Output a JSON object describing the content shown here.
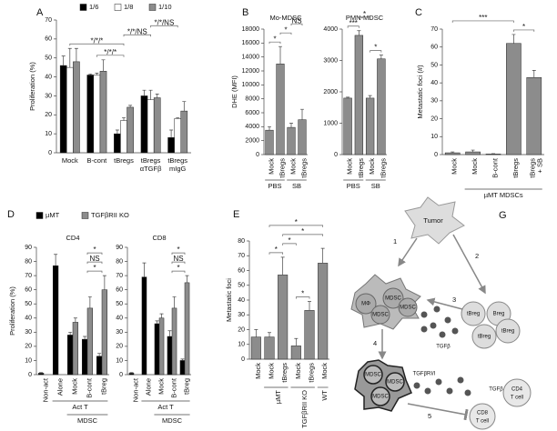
{
  "chart_data": [
    {
      "type": "bar",
      "label": "A",
      "ylabel": "Proliferation (%)",
      "categories": [
        [
          "Mock"
        ],
        [
          "B-cont"
        ],
        [
          "tBregs"
        ],
        [
          "tBregs",
          "αTGFβ"
        ],
        [
          "tBregs",
          "mIgG"
        ]
      ],
      "series": [
        {
          "name": "1/6",
          "color": "#000000",
          "values": [
            46,
            41,
            10,
            30,
            8
          ],
          "errors": [
            5,
            0.5,
            2,
            3,
            4
          ]
        },
        {
          "name": "1/8",
          "color": "#ffffff",
          "values": [
            45,
            41,
            17,
            28,
            18
          ],
          "errors": [
            10,
            1,
            1.5,
            5,
            0.5
          ]
        },
        {
          "name": "1/10",
          "color": "#8c8c8c",
          "values": [
            48,
            43,
            24,
            29,
            22
          ],
          "errors": [
            7,
            6,
            1,
            2,
            5
          ]
        }
      ],
      "ylim": [
        0,
        70
      ],
      "yticks": [
        0,
        10,
        20,
        30,
        40,
        50,
        60,
        70
      ],
      "annotations": [
        {
          "text": "*/*/*",
          "from": 1,
          "to": 2
        },
        {
          "text": "*/*/*",
          "from": 0,
          "to": 2
        },
        {
          "text": "*/*/NS",
          "from": 2,
          "to": 3
        },
        {
          "text": "*/*/NS",
          "from": 3,
          "to": 4
        }
      ]
    },
    {
      "type": "bar",
      "label": "B",
      "title": "Mo-MDSC",
      "ylabel": "DHE (MFI)",
      "categories": [
        [
          "Mock"
        ],
        [
          "tBregs"
        ],
        [
          "Mock"
        ],
        [
          "tBregs"
        ]
      ],
      "series": [
        {
          "color": "#8c8c8c",
          "values": [
            3500,
            13000,
            3900,
            5000
          ],
          "errors": [
            500,
            2500,
            600,
            1500
          ]
        }
      ],
      "ylim": [
        0,
        18000
      ],
      "yticks": [
        0,
        2000,
        4000,
        6000,
        8000,
        10000,
        12000,
        14000,
        16000,
        18000
      ],
      "groups": [
        {
          "label": "PBS",
          "from": 0,
          "to": 1
        },
        {
          "label": "SB",
          "from": 2,
          "to": 3
        }
      ],
      "annotations": [
        {
          "text": "*",
          "from": 0,
          "to": 1
        },
        {
          "text": "*",
          "from": 1,
          "to": 2
        },
        {
          "text": "NS",
          "from": 2,
          "to": 3
        }
      ]
    },
    {
      "type": "bar",
      "title": "PMN-MDSC",
      "categories": [
        [
          "Mock"
        ],
        [
          "tBregs"
        ],
        [
          "Mock"
        ],
        [
          "tBregs"
        ]
      ],
      "series": [
        {
          "color": "#8c8c8c",
          "values": [
            1800,
            3800,
            1800,
            3050
          ],
          "errors": [
            30,
            150,
            80,
            120
          ]
        }
      ],
      "ylim": [
        0,
        4000
      ],
      "yticks": [
        0,
        1000,
        2000,
        3000,
        4000
      ],
      "groups": [
        {
          "label": "PBS",
          "from": 0,
          "to": 1
        },
        {
          "label": "SB",
          "from": 2,
          "to": 3
        }
      ],
      "annotations": [
        {
          "text": "***",
          "from": 0,
          "to": 1
        },
        {
          "text": "*",
          "from": 2,
          "to": 3
        },
        {
          "text": "*",
          "from": 1,
          "to": 2
        }
      ]
    },
    {
      "type": "bar",
      "label": "C",
      "ylabel": "Metastatic foci (#)",
      "categories": [
        [
          "Mock"
        ],
        [
          "Mock"
        ],
        [
          "B-cont"
        ],
        [
          "tBregs"
        ],
        [
          "tBregs",
          "+ SB"
        ]
      ],
      "series": [
        {
          "color": "#8c8c8c",
          "values": [
            1,
            1.5,
            0.3,
            62,
            43
          ],
          "errors": [
            0.5,
            1,
            0.2,
            5,
            4
          ]
        }
      ],
      "ylim": [
        0,
        70
      ],
      "yticks": [
        0,
        10,
        20,
        30,
        40,
        50,
        60,
        70
      ],
      "groups": [
        {
          "label": "µMT MDSCs",
          "from": 1,
          "to": 4
        }
      ],
      "annotations": [
        {
          "text": "*",
          "from": 3,
          "to": 4
        },
        {
          "text": "***",
          "from": 0,
          "to": 3
        }
      ]
    },
    {
      "type": "bar",
      "label": "D",
      "title": "CD4",
      "ylabel": "Proliferation (%)",
      "categories": [
        [
          "Non-act"
        ],
        [
          "Alone"
        ],
        [
          "Mock"
        ],
        [
          "B-cont"
        ],
        [
          "tBreg"
        ]
      ],
      "series": [
        {
          "name": "µMT",
          "color": "#000000",
          "values": [
            1,
            77,
            28,
            25,
            13
          ],
          "errors": [
            0.5,
            8,
            2,
            2,
            2
          ]
        },
        {
          "name": "TGFβRII KO",
          "color": "#8c8c8c",
          "values": [
            null,
            null,
            37,
            47,
            60
          ],
          "errors": [
            null,
            null,
            3,
            8,
            10
          ]
        }
      ],
      "ylim": [
        0,
        90
      ],
      "yticks": [
        0,
        10,
        20,
        30,
        40,
        50,
        60,
        70,
        80,
        90
      ],
      "groups": [
        {
          "label": "Act T",
          "from": 1,
          "to": 4
        },
        {
          "label": "MDSC",
          "from": 2,
          "to": 4
        }
      ],
      "annotations": [
        {
          "text": "*",
          "from": 3,
          "to": 4
        },
        {
          "text": "NS",
          "from": 3,
          "to": 4
        },
        {
          "text": "*",
          "from": 3,
          "to": 4
        }
      ]
    },
    {
      "type": "bar",
      "title": "CD8",
      "categories": [
        [
          "Non-act"
        ],
        [
          "Alone"
        ],
        [
          "Mock"
        ],
        [
          "B-cont"
        ],
        [
          "tBreg"
        ]
      ],
      "series": [
        {
          "color": "#000000",
          "values": [
            1,
            69,
            36,
            27,
            10
          ],
          "errors": [
            0.5,
            10,
            2,
            4,
            1
          ]
        },
        {
          "color": "#8c8c8c",
          "values": [
            null,
            null,
            40,
            47,
            65
          ],
          "errors": [
            null,
            null,
            3,
            8,
            5
          ]
        }
      ],
      "ylim": [
        0,
        90
      ],
      "yticks": [
        0,
        10,
        20,
        30,
        40,
        50,
        60,
        70,
        80,
        90
      ],
      "groups": [
        {
          "label": "Act T",
          "from": 1,
          "to": 4
        },
        {
          "label": "MDSC",
          "from": 2,
          "to": 4
        }
      ],
      "annotations": [
        {
          "text": "*",
          "from": 3,
          "to": 4
        },
        {
          "text": "NS",
          "from": 3,
          "to": 4
        },
        {
          "text": "*",
          "from": 3,
          "to": 4
        }
      ]
    },
    {
      "type": "bar",
      "label": "E",
      "ylabel": "Metastatic foci",
      "categories": [
        [
          "Mock"
        ],
        [
          "Mock"
        ],
        [
          "tBregs"
        ],
        [
          "Mock"
        ],
        [
          "tBregs"
        ],
        [
          "Mock"
        ]
      ],
      "series": [
        {
          "color": "#8c8c8c",
          "values": [
            15,
            15,
            57,
            9,
            33,
            65
          ],
          "errors": [
            5,
            3,
            12,
            5,
            6,
            10
          ]
        }
      ],
      "ylim": [
        0,
        80
      ],
      "yticks": [
        0,
        10,
        20,
        30,
        40,
        50,
        60,
        70,
        80
      ],
      "groups": [
        {
          "label": "µMT",
          "from": 1,
          "to": 2
        },
        {
          "label": "TGFβRII KO",
          "from": 3,
          "to": 4
        },
        {
          "label": "WT",
          "from": 5,
          "to": 5
        }
      ],
      "annotations": [
        {
          "text": "*",
          "from": 3,
          "to": 4
        },
        {
          "text": "*",
          "from": 1,
          "to": 2
        },
        {
          "text": "*",
          "from": 2,
          "to": 3
        },
        {
          "text": "*",
          "from": 2,
          "to": 5
        },
        {
          "text": "*",
          "from": 1,
          "to": 5
        }
      ]
    }
  ],
  "diagram": {
    "label": "G",
    "tumor": "Tumor",
    "steps": [
      "1",
      "2",
      "3",
      "4",
      "5"
    ],
    "cluster_1": [
      "MDSC",
      "MΦ",
      "MDSC",
      "MDSC"
    ],
    "bregs": [
      "tBreg",
      "Breg",
      "tBreg",
      "tBreg"
    ],
    "tgfb": [
      "TGFβ",
      "TGFβRI/I",
      "TGFβ"
    ],
    "cluster_2": [
      "MDSC",
      "MDSC",
      "MDSC"
    ],
    "t_cells": [
      [
        "CD4",
        "T cell"
      ],
      [
        "CD8",
        "T cell"
      ]
    ]
  }
}
